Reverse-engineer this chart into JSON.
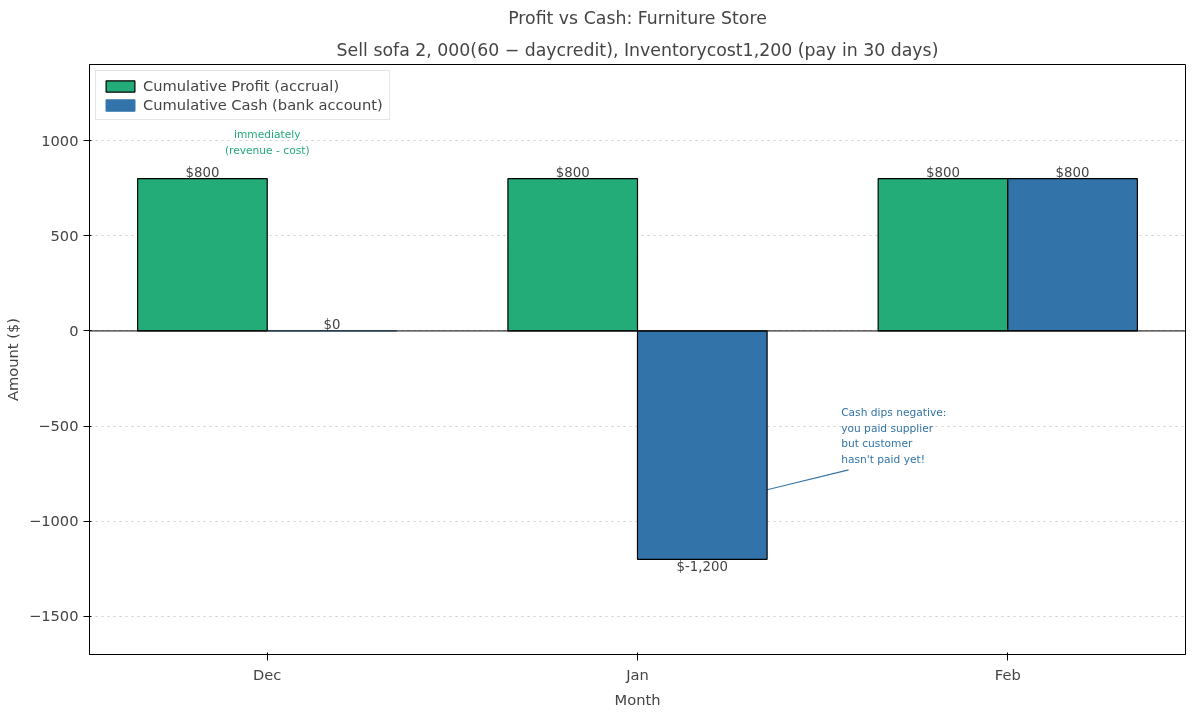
{
  "chart_data": {
    "type": "bar",
    "title": "Profit vs Cash: Furniture Store",
    "subtitle": "Sell sofa 2, 000(60 − daycredit), Inventorycost1,200 (pay in 30 days)",
    "xlabel": "Month",
    "ylabel": "Amount ($)",
    "categories": [
      "Dec",
      "Jan",
      "Feb"
    ],
    "series": [
      {
        "name": "Cumulative Profit (accrual)",
        "color": "#23ab78",
        "values": [
          800,
          800,
          800
        ],
        "value_labels": [
          "$800",
          "$800",
          "$800"
        ]
      },
      {
        "name": "Cumulative Cash (bank account)",
        "color": "#3274a9",
        "values": [
          0,
          -1200,
          800
        ],
        "value_labels": [
          "$0",
          "$-1,200",
          "$800"
        ]
      }
    ],
    "ylim": [
      -1700,
      1400
    ],
    "yticks": [
      -1500,
      -1000,
      -500,
      0,
      500,
      1000
    ],
    "grid": "y",
    "legend": "top left",
    "ref_lines": [
      {
        "axis": "y",
        "value": 0,
        "color": "#000000"
      }
    ],
    "annotations": [
      {
        "text": "immediately\n(revenue - cost)",
        "x": "Dec",
        "y": 800
      },
      {
        "text": "Cash dips negative:\nyou paid supplier\nbut customer\nhasn't paid yet!",
        "x": "Jan",
        "y": -1000
      }
    ]
  }
}
